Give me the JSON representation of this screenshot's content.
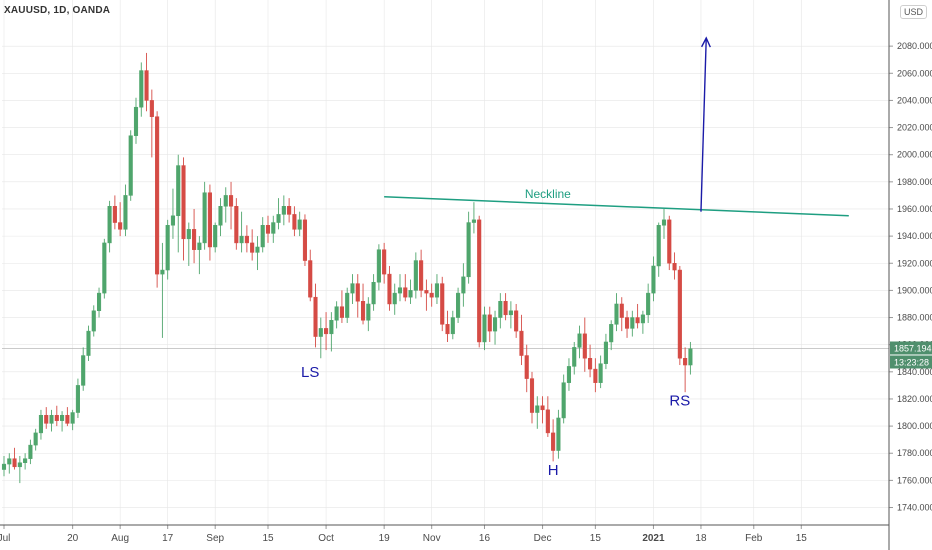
{
  "header": {
    "symbol_line": "XAUUSD, 1D, OANDA",
    "currency_badge": "USD"
  },
  "colors": {
    "bull": "#4fa56c",
    "bear": "#d54b45",
    "neckline": "#1e9e81",
    "arrow": "#1a1aa8",
    "pattern_labels": "#1a1aa8",
    "price_tag_bg": "#4f8f6d",
    "grid": "#e6e6e6"
  },
  "chart_data": {
    "type": "candlestick",
    "instrument": "XAUUSD",
    "timeframe": "1D",
    "source": "OANDA",
    "ylim": [
      1730,
      2100
    ],
    "yticks": [
      1740,
      1760,
      1780,
      1800,
      1820,
      1840,
      1860,
      1880,
      1900,
      1920,
      1940,
      1960,
      1980,
      2000,
      2020,
      2040,
      2060,
      2080
    ],
    "ytick_labels": [
      "1740.000",
      "1760.000",
      "1780.000",
      "1800.000",
      "1820.000",
      "1840.000",
      "1860.000",
      "1880.000",
      "1900.000",
      "1920.000",
      "1940.000",
      "1960.000",
      "1980.000",
      "2000.000",
      "2020.000",
      "2040.000",
      "2060.000",
      "2080.000"
    ],
    "x_tick_labels": [
      {
        "label": "Jul",
        "index": 0,
        "bold": false
      },
      {
        "label": "20",
        "index": 13,
        "bold": false
      },
      {
        "label": "Aug",
        "index": 22,
        "bold": false
      },
      {
        "label": "17",
        "index": 31,
        "bold": false
      },
      {
        "label": "Sep",
        "index": 40,
        "bold": false
      },
      {
        "label": "15",
        "index": 50,
        "bold": false
      },
      {
        "label": "Oct",
        "index": 61,
        "bold": false
      },
      {
        "label": "19",
        "index": 72,
        "bold": false
      },
      {
        "label": "Nov",
        "index": 81,
        "bold": false
      },
      {
        "label": "16",
        "index": 91,
        "bold": false
      },
      {
        "label": "Dec",
        "index": 102,
        "bold": false
      },
      {
        "label": "15",
        "index": 112,
        "bold": false
      },
      {
        "label": "2021",
        "index": 123,
        "bold": true
      },
      {
        "label": "18",
        "index": 132,
        "bold": false
      },
      {
        "label": "Feb",
        "index": 142,
        "bold": false
      },
      {
        "label": "15",
        "index": 151,
        "bold": false
      }
    ],
    "candles": [
      [
        1768,
        1778,
        1763,
        1772
      ],
      [
        1772,
        1780,
        1765,
        1776
      ],
      [
        1776,
        1784,
        1768,
        1770
      ],
      [
        1770,
        1778,
        1758,
        1773
      ],
      [
        1773,
        1780,
        1768,
        1776
      ],
      [
        1776,
        1790,
        1772,
        1786
      ],
      [
        1786,
        1798,
        1782,
        1795
      ],
      [
        1795,
        1812,
        1790,
        1808
      ],
      [
        1808,
        1814,
        1798,
        1802
      ],
      [
        1802,
        1812,
        1796,
        1808
      ],
      [
        1808,
        1815,
        1800,
        1804
      ],
      [
        1804,
        1811,
        1796,
        1808
      ],
      [
        1808,
        1814,
        1800,
        1802
      ],
      [
        1802,
        1812,
        1797,
        1810
      ],
      [
        1810,
        1835,
        1806,
        1830
      ],
      [
        1830,
        1858,
        1826,
        1852
      ],
      [
        1852,
        1874,
        1848,
        1870
      ],
      [
        1870,
        1889,
        1866,
        1885
      ],
      [
        1885,
        1902,
        1880,
        1898
      ],
      [
        1898,
        1938,
        1894,
        1935
      ],
      [
        1935,
        1966,
        1928,
        1962
      ],
      [
        1962,
        1970,
        1945,
        1950
      ],
      [
        1950,
        1965,
        1940,
        1945
      ],
      [
        1945,
        1978,
        1940,
        1970
      ],
      [
        1970,
        2018,
        1966,
        2014
      ],
      [
        2014,
        2042,
        2008,
        2035
      ],
      [
        2035,
        2068,
        2028,
        2062
      ],
      [
        2062,
        2075,
        2032,
        2040
      ],
      [
        2040,
        2048,
        1998,
        2028
      ],
      [
        2028,
        2032,
        1902,
        1912
      ],
      [
        1912,
        1935,
        1865,
        1915
      ],
      [
        1915,
        1952,
        1908,
        1948
      ],
      [
        1948,
        1975,
        1938,
        1955
      ],
      [
        1955,
        2000,
        1928,
        1992
      ],
      [
        1992,
        1998,
        1922,
        1938
      ],
      [
        1938,
        1950,
        1918,
        1945
      ],
      [
        1945,
        1960,
        1920,
        1930
      ],
      [
        1930,
        1940,
        1912,
        1935
      ],
      [
        1935,
        1980,
        1930,
        1972
      ],
      [
        1972,
        1978,
        1922,
        1932
      ],
      [
        1932,
        1950,
        1928,
        1948
      ],
      [
        1948,
        1968,
        1940,
        1962
      ],
      [
        1962,
        1976,
        1950,
        1970
      ],
      [
        1970,
        1980,
        1945,
        1962
      ],
      [
        1962,
        1968,
        1930,
        1935
      ],
      [
        1935,
        1958,
        1928,
        1940
      ],
      [
        1940,
        1948,
        1928,
        1935
      ],
      [
        1935,
        1945,
        1922,
        1928
      ],
      [
        1928,
        1940,
        1915,
        1932
      ],
      [
        1932,
        1954,
        1928,
        1948
      ],
      [
        1948,
        1955,
        1935,
        1942
      ],
      [
        1942,
        1955,
        1935,
        1950
      ],
      [
        1950,
        1968,
        1945,
        1956
      ],
      [
        1956,
        1970,
        1948,
        1962
      ],
      [
        1962,
        1968,
        1950,
        1956
      ],
      [
        1956,
        1962,
        1940,
        1945
      ],
      [
        1945,
        1958,
        1940,
        1952
      ],
      [
        1952,
        1956,
        1918,
        1922
      ],
      [
        1922,
        1930,
        1892,
        1895
      ],
      [
        1895,
        1905,
        1858,
        1866
      ],
      [
        1866,
        1880,
        1850,
        1872
      ],
      [
        1872,
        1884,
        1856,
        1868
      ],
      [
        1868,
        1884,
        1855,
        1878
      ],
      [
        1878,
        1892,
        1872,
        1888
      ],
      [
        1888,
        1900,
        1876,
        1880
      ],
      [
        1880,
        1902,
        1876,
        1898
      ],
      [
        1898,
        1912,
        1890,
        1905
      ],
      [
        1905,
        1912,
        1880,
        1892
      ],
      [
        1892,
        1905,
        1875,
        1878
      ],
      [
        1878,
        1895,
        1870,
        1890
      ],
      [
        1890,
        1912,
        1885,
        1906
      ],
      [
        1906,
        1934,
        1900,
        1930
      ],
      [
        1930,
        1935,
        1905,
        1912
      ],
      [
        1912,
        1918,
        1885,
        1890
      ],
      [
        1890,
        1905,
        1882,
        1898
      ],
      [
        1898,
        1912,
        1892,
        1902
      ],
      [
        1902,
        1912,
        1892,
        1895
      ],
      [
        1895,
        1908,
        1890,
        1900
      ],
      [
        1900,
        1928,
        1894,
        1922
      ],
      [
        1922,
        1930,
        1895,
        1900
      ],
      [
        1900,
        1908,
        1885,
        1898
      ],
      [
        1898,
        1905,
        1888,
        1895
      ],
      [
        1895,
        1912,
        1890,
        1905
      ],
      [
        1905,
        1910,
        1870,
        1875
      ],
      [
        1875,
        1885,
        1862,
        1868
      ],
      [
        1868,
        1885,
        1864,
        1880
      ],
      [
        1880,
        1902,
        1876,
        1898
      ],
      [
        1898,
        1920,
        1888,
        1910
      ],
      [
        1910,
        1958,
        1905,
        1950
      ],
      [
        1950,
        1965,
        1942,
        1952
      ],
      [
        1952,
        1955,
        1858,
        1862
      ],
      [
        1862,
        1888,
        1856,
        1882
      ],
      [
        1882,
        1888,
        1862,
        1870
      ],
      [
        1870,
        1885,
        1860,
        1880
      ],
      [
        1880,
        1898,
        1872,
        1892
      ],
      [
        1892,
        1898,
        1878,
        1882
      ],
      [
        1882,
        1892,
        1872,
        1885
      ],
      [
        1885,
        1890,
        1865,
        1870
      ],
      [
        1870,
        1882,
        1845,
        1852
      ],
      [
        1852,
        1860,
        1825,
        1835
      ],
      [
        1835,
        1840,
        1802,
        1810
      ],
      [
        1810,
        1822,
        1798,
        1815
      ],
      [
        1815,
        1822,
        1802,
        1812
      ],
      [
        1812,
        1822,
        1792,
        1795
      ],
      [
        1795,
        1805,
        1774,
        1782
      ],
      [
        1782,
        1812,
        1776,
        1806
      ],
      [
        1806,
        1838,
        1802,
        1832
      ],
      [
        1832,
        1850,
        1826,
        1844
      ],
      [
        1844,
        1862,
        1838,
        1858
      ],
      [
        1858,
        1874,
        1850,
        1868
      ],
      [
        1868,
        1880,
        1840,
        1850
      ],
      [
        1850,
        1860,
        1836,
        1842
      ],
      [
        1842,
        1850,
        1825,
        1832
      ],
      [
        1832,
        1852,
        1828,
        1846
      ],
      [
        1846,
        1868,
        1842,
        1862
      ],
      [
        1862,
        1878,
        1856,
        1875
      ],
      [
        1875,
        1898,
        1870,
        1890
      ],
      [
        1890,
        1895,
        1870,
        1880
      ],
      [
        1880,
        1885,
        1865,
        1872
      ],
      [
        1872,
        1885,
        1866,
        1880
      ],
      [
        1880,
        1890,
        1872,
        1876
      ],
      [
        1876,
        1885,
        1868,
        1882
      ],
      [
        1882,
        1905,
        1876,
        1898
      ],
      [
        1898,
        1925,
        1892,
        1918
      ],
      [
        1918,
        1950,
        1910,
        1948
      ],
      [
        1948,
        1960,
        1938,
        1952
      ],
      [
        1952,
        1955,
        1915,
        1920
      ],
      [
        1920,
        1928,
        1908,
        1915
      ],
      [
        1915,
        1918,
        1845,
        1850
      ],
      [
        1850,
        1858,
        1825,
        1845
      ],
      [
        1845,
        1862,
        1838,
        1857
      ]
    ],
    "annotations": [
      {
        "text": "LS",
        "index": 58,
        "price": 1836
      },
      {
        "text": "H",
        "index": 104,
        "price": 1764
      },
      {
        "text": "RS",
        "index": 128,
        "price": 1815
      },
      {
        "text": "Neckline",
        "index": 103,
        "price": 1968
      }
    ],
    "neckline": {
      "start_index": 72,
      "start_price": 1969,
      "end_index": 160,
      "end_price": 1955,
      "label": "Neckline"
    },
    "arrow": {
      "from_index": 132,
      "from_price": 1958,
      "to_index": 133,
      "to_price": 2086
    },
    "last_price_line": 1857.194,
    "last_price_label": "1857.194",
    "countdown_label": "13:23:28"
  }
}
